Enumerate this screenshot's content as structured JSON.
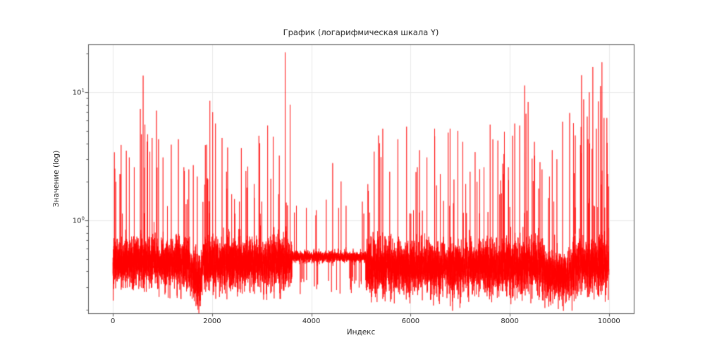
{
  "figure": {
    "background": "#ffffff"
  },
  "chart_data": {
    "type": "line",
    "title": "График (логарифмическая шкала Y)",
    "xlabel": "Индекс",
    "ylabel": "Значение (log)",
    "yscale": "log",
    "grid": true,
    "legend": "none",
    "line_color": "#ff0000",
    "grid_color": "#e9e9e9",
    "spine_color": "#565656",
    "tick_color": "#565656",
    "text_color": "#262626",
    "n_points": 10000,
    "xlim": [
      -500,
      10500
    ],
    "ylim": [
      0.188,
      23.7
    ],
    "x_ticks": [
      0,
      2000,
      4000,
      6000,
      8000,
      10000
    ],
    "y_major_ticks": [
      {
        "base": "10",
        "exp": "0",
        "value": 1
      },
      {
        "base": "10",
        "exp": "1",
        "value": 10
      }
    ],
    "y_minor_ticks": [
      0.2,
      0.3,
      0.4,
      0.5,
      0.6,
      0.7,
      0.8,
      0.9,
      2,
      3,
      4,
      5,
      6,
      7,
      8,
      9,
      20
    ],
    "seed": 42,
    "baseline_description": "noisy band around 0.45-0.55 with heavy-tailed upward spikes; quiet low-noise segment ~3610-5100; slightly lower band 1550-1800 and 8700-9280; dense tall spikes after 9280",
    "noise_regions": [
      {
        "start": 0,
        "end": 1550,
        "center": 0.47,
        "sigma": 0.21,
        "spike_prob": 0.012,
        "spike_min": 0.05,
        "spike_range": 0.65,
        "down_prob": 0.02
      },
      {
        "start": 1550,
        "end": 1800,
        "center": 0.38,
        "sigma": 0.2,
        "spike_prob": 0.006,
        "spike_min": 0.0,
        "spike_range": 0.45,
        "down_prob": 0.02
      },
      {
        "start": 1800,
        "end": 3610,
        "center": 0.47,
        "sigma": 0.21,
        "spike_prob": 0.012,
        "spike_min": 0.05,
        "spike_range": 0.65,
        "down_prob": 0.02
      },
      {
        "start": 3610,
        "end": 5100,
        "center": 0.52,
        "sigma": 0.05,
        "spike_prob": 0.002,
        "spike_min": 0.0,
        "spike_range": 0.35,
        "down_prob": 0.012
      },
      {
        "start": 5100,
        "end": 8700,
        "center": 0.44,
        "sigma": 0.22,
        "spike_prob": 0.012,
        "spike_min": 0.05,
        "spike_range": 0.65,
        "down_prob": 0.022
      },
      {
        "start": 8700,
        "end": 9280,
        "center": 0.38,
        "sigma": 0.2,
        "spike_prob": 0.008,
        "spike_min": 0.05,
        "spike_range": 0.6,
        "down_prob": 0.02
      },
      {
        "start": 9280,
        "end": 10000,
        "center": 0.46,
        "sigma": 0.23,
        "spike_prob": 0.04,
        "spike_min": 0.1,
        "spike_range": 0.9,
        "down_prob": 0.02
      }
    ],
    "major_spikes": [
      [
        30,
        3.4
      ],
      [
        60,
        2.0
      ],
      [
        140,
        2.3
      ],
      [
        270,
        3.5
      ],
      [
        330,
        3.1
      ],
      [
        430,
        2.6
      ],
      [
        552,
        7.4
      ],
      [
        575,
        4.7
      ],
      [
        609,
        13.5
      ],
      [
        645,
        5.6
      ],
      [
        700,
        4.7
      ],
      [
        790,
        4.4
      ],
      [
        878,
        7.2
      ],
      [
        920,
        4.3
      ],
      [
        1010,
        3.1
      ],
      [
        1176,
        3.9
      ],
      [
        1320,
        4.3
      ],
      [
        1430,
        2.6
      ],
      [
        1530,
        2.5
      ],
      [
        1620,
        2.7
      ],
      [
        1700,
        2.2
      ],
      [
        1850,
        1.9
      ],
      [
        1954,
        8.6
      ],
      [
        2011,
        7.0
      ],
      [
        2068,
        5.7
      ],
      [
        2200,
        4.4
      ],
      [
        2290,
        2.4
      ],
      [
        2394,
        1.6
      ],
      [
        2550,
        1.4
      ],
      [
        2700,
        1.8
      ],
      [
        2850,
        1.5
      ],
      [
        2960,
        4.0
      ],
      [
        3000,
        1.4
      ],
      [
        3119,
        5.5
      ],
      [
        3232,
        4.5
      ],
      [
        3340,
        1.6
      ],
      [
        3473,
        20.5
      ],
      [
        3572,
        8.0
      ],
      [
        3700,
        1.3
      ],
      [
        3900,
        1.25
      ],
      [
        4100,
        1.2
      ],
      [
        4300,
        1.45
      ],
      [
        4430,
        2.8
      ],
      [
        4550,
        1.25
      ],
      [
        4700,
        1.3
      ],
      [
        5028,
        1.4
      ],
      [
        5150,
        1.7
      ],
      [
        5354,
        4.6
      ],
      [
        5375,
        4.0
      ],
      [
        5440,
        5.2
      ],
      [
        5580,
        2.4
      ],
      [
        5744,
        4.3
      ],
      [
        5920,
        5.4
      ],
      [
        6136,
        2.6
      ],
      [
        6330,
        3.1
      ],
      [
        6485,
        5.2
      ],
      [
        6600,
        2.3
      ],
      [
        6797,
        5.2
      ],
      [
        6953,
        5.0
      ],
      [
        7052,
        4.1
      ],
      [
        7200,
        2.4
      ],
      [
        7340,
        2.0
      ],
      [
        7480,
        2.6
      ],
      [
        7604,
        5.6
      ],
      [
        7760,
        4.2
      ],
      [
        7870,
        2.3
      ],
      [
        7972,
        2.6
      ],
      [
        8100,
        5.7
      ],
      [
        8200,
        5.5
      ],
      [
        8300,
        11.3
      ],
      [
        8327,
        6.8
      ],
      [
        8370,
        8.4
      ],
      [
        8500,
        3.2
      ],
      [
        8650,
        2.5
      ],
      [
        8800,
        2.2
      ],
      [
        8950,
        3.0
      ],
      [
        9065,
        5.9
      ],
      [
        9207,
        6.9
      ],
      [
        9320,
        4.6
      ],
      [
        9447,
        13.6
      ],
      [
        9490,
        8.8
      ],
      [
        9603,
        10.0
      ],
      [
        9674,
        15.8
      ],
      [
        9745,
        5.2
      ],
      [
        9830,
        11.2
      ],
      [
        9858,
        17.2
      ],
      [
        9900,
        6.3
      ],
      [
        9957,
        6.3
      ]
    ]
  }
}
